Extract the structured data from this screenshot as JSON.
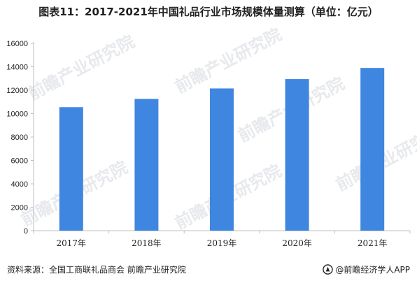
{
  "chart_data": {
    "type": "bar",
    "title": "图表11：2017-2021年中国礼品行业市场规模体量测算（单位：亿元）",
    "categories": [
      "2017年",
      "2018年",
      "2019年",
      "2020年",
      "2021年"
    ],
    "series": [
      {
        "values": [
          10550,
          11250,
          12150,
          12950,
          13900
        ]
      }
    ],
    "xlabel": "",
    "ylabel": "",
    "ylim": [
      0,
      16000
    ],
    "yticks": [
      0,
      2000,
      4000,
      6000,
      8000,
      10000,
      12000,
      14000,
      16000
    ],
    "grid": false,
    "legend": "none",
    "bar_color": "#3F86E0"
  },
  "footer": {
    "source": "资料来源：全国工商联礼品商会 前瞻产业研究院",
    "brand": "@前瞻经济学人APP"
  },
  "colors": {
    "bar": "#3F86E0",
    "axis": "#bfbfbf",
    "text": "#1f1f1f",
    "watermark": "#c9ced6"
  },
  "watermark": {
    "text": "前瞻产业研究院"
  }
}
